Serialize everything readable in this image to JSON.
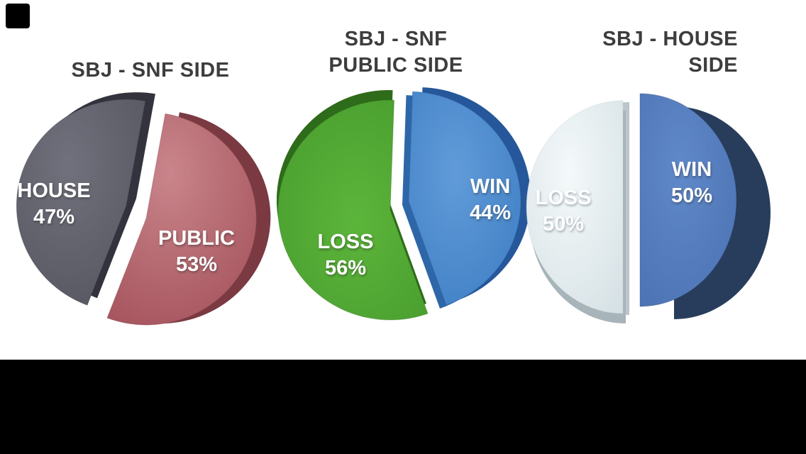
{
  "page": {
    "background": "#ffffff",
    "title_color": "#3d3d3d",
    "label_color": "#ffffff",
    "decor": {
      "top_left_mark_color": "#000000",
      "bottom_letterbox_color": "#000000"
    }
  },
  "chart_data": [
    {
      "type": "pie",
      "style": "3d-exploded",
      "title": "SBJ - SNF SIDE",
      "title_lines": [
        "SBJ - SNF SIDE"
      ],
      "legend_position": "labels-on-slices",
      "slices": [
        {
          "label": "HOUSE",
          "value": 47,
          "pct_text": "47%",
          "color": "#54545e",
          "highlight": "#71717d",
          "side_colors": [
            "#33333d"
          ]
        },
        {
          "label": "PUBLIC",
          "value": 53,
          "pct_text": "53%",
          "color": "#a4515a",
          "highlight": "#c9858b",
          "side_colors": [
            "#7b3a42"
          ]
        }
      ]
    },
    {
      "type": "pie",
      "style": "3d-exploded",
      "title": "SBJ - SNF PUBLIC SIDE",
      "title_lines": [
        "SBJ - SNF",
        "PUBLIC SIDE"
      ],
      "legend_position": "labels-on-slices",
      "slices": [
        {
          "label": "LOSS",
          "value": 56,
          "pct_text": "56%",
          "color": "#45982b",
          "highlight": "#5cb53b",
          "side_colors": [
            "#2e6b1a"
          ]
        },
        {
          "label": "WIN",
          "value": 44,
          "pct_text": "44%",
          "color": "#3b7cc2",
          "highlight": "#619bd9",
          "side_colors": [
            "#26579a",
            "#2e67a8"
          ]
        }
      ]
    },
    {
      "type": "pie",
      "style": "3d-exploded",
      "title": "SBJ - HOUSE SIDE",
      "title_lines": [
        "SBJ - HOUSE",
        "SIDE"
      ],
      "legend_position": "labels-on-slices",
      "slices": [
        {
          "label": "LOSS",
          "value": 50,
          "pct_text": "50%",
          "color": "#d5e0e4",
          "highlight": "#f4f9fa",
          "side_colors": [
            "#bac6cb",
            "#a7b4ba"
          ]
        },
        {
          "label": "WIN",
          "value": 50,
          "pct_text": "50%",
          "color": "#4a71b2",
          "highlight": "#6089c9",
          "side_colors": [
            "#283d5c"
          ]
        }
      ]
    }
  ]
}
